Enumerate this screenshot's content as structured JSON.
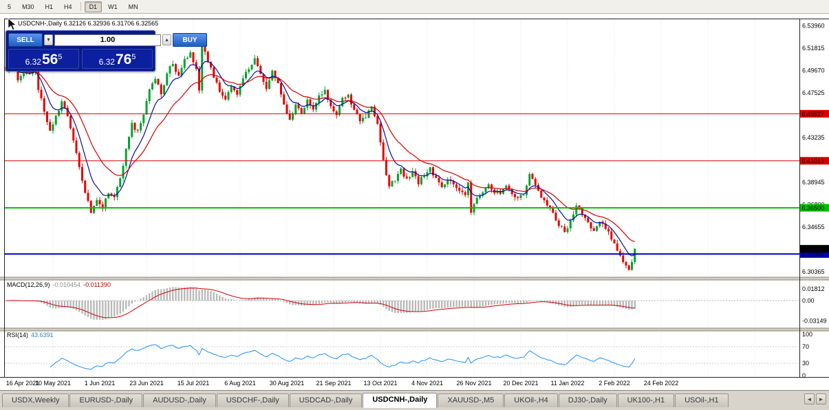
{
  "colors": {
    "up": "#00a32e",
    "down": "#e60000",
    "ma_fast": "#000f9e",
    "ma_slow": "#d40000",
    "macd_hist": "#b9b9b9",
    "macd_signal": "#d40000",
    "rsi_line": "#1e90ff",
    "grid": "#e4e4e4",
    "current_badge": "#000000"
  },
  "icons": {
    "volume_down_icon": "▾",
    "volume_up_icon": "▴",
    "tab_scroll_left_icon": "◄",
    "tab_scroll_right_icon": "►"
  },
  "toolbar": {
    "timeframes": [
      "5",
      "M30",
      "H1",
      "H4",
      "D1",
      "W1",
      "MN"
    ],
    "active": "D1",
    "divider_after_index": 3
  },
  "window": {
    "symbol_line": "USDCNH-,Daily 6.32126 6.32936 6.31706 6.32565"
  },
  "trade_panel": {
    "sell_label": "SELL",
    "buy_label": "BUY",
    "volume": "1.00",
    "sell_big": "6.32",
    "sell_med": "56",
    "sell_sup": "5",
    "buy_big": "6.32",
    "buy_med": "76",
    "buy_sup": "5"
  },
  "price_axis": [
    "6.53960",
    "6.51815",
    "6.49670",
    "6.47525",
    "6.45380",
    "6.43235",
    "6.41090",
    "6.38945",
    "6.36800",
    "6.34655",
    "6.32510",
    "6.30365"
  ],
  "date_axis": [
    "16 Apr 2021",
    "10 May 2021",
    "1 Jun 2021",
    "23 Jun 2021",
    "15 Jul 2021",
    "6 Aug 2021",
    "30 Aug 2021",
    "21 Sep 2021",
    "13 Oct 2021",
    "4 Nov 2021",
    "26 Nov 2021",
    "20 Dec 2021",
    "11 Jan 2022",
    "2 Feb 2022",
    "24 Feb 2022"
  ],
  "levels": [
    {
      "value": 6.45527,
      "label": "6.45527",
      "color": "#dc0000",
      "width": 1
    },
    {
      "value": 6.41013,
      "label": "6.41013",
      "color": "#dc0000",
      "width": 1
    },
    {
      "value": 6.365,
      "label": "6.36500",
      "color": "#00c000",
      "width": 2
    },
    {
      "value": 6.3206,
      "label": "6.32060",
      "color": "#0000c8",
      "width": 2
    }
  ],
  "current_price": {
    "value": 6.32565,
    "label": "6.32565"
  },
  "macd": {
    "name": "MACD(12,26,9)",
    "main": "-0.010454",
    "signal": "-0.011390",
    "axis": [
      {
        "label": "0.01812",
        "value": 0.01812
      },
      {
        "label": "0.00",
        "value": 0
      },
      {
        "label": "-0.03149",
        "value": -0.03149
      }
    ]
  },
  "rsi": {
    "name": "RSI(14)",
    "value": "43.6391",
    "axis": [
      100,
      70,
      30,
      0
    ],
    "levels": [
      70,
      30
    ]
  },
  "tabs": [
    {
      "label": "USDX,Weekly",
      "active": false
    },
    {
      "label": "EURUSD-,Daily",
      "active": false
    },
    {
      "label": "AUDUSD-,Daily",
      "active": false
    },
    {
      "label": "USDCHF-,Daily",
      "active": false
    },
    {
      "label": "USDCAD-,Daily",
      "active": false
    },
    {
      "label": "USDCNH-,Daily",
      "active": true
    },
    {
      "label": "XAUUSD-,M5",
      "active": false
    },
    {
      "label": "UKOil-,H4",
      "active": false
    },
    {
      "label": "DJ30-,Daily",
      "active": false
    },
    {
      "label": "UK100-,H1",
      "active": false
    },
    {
      "label": "USOil-,H1",
      "active": false
    }
  ],
  "chart_data": {
    "type": "candlestick",
    "symbol": "USDCNH-",
    "timeframe": "Daily",
    "last_ohlc": {
      "open": 6.32126,
      "high": 6.32936,
      "low": 6.31706,
      "close": 6.32565
    },
    "y_range": [
      6.299,
      6.546
    ],
    "candle_count": 216,
    "price_anchors": [
      [
        0,
        6.497
      ],
      [
        2,
        6.503
      ],
      [
        4,
        6.489
      ],
      [
        6,
        6.4955
      ],
      [
        8,
        6.4935
      ],
      [
        10,
        6.4985
      ],
      [
        11,
        6.479
      ],
      [
        13,
        6.458
      ],
      [
        15,
        6.44
      ],
      [
        17,
        6.452
      ],
      [
        19,
        6.4665
      ],
      [
        21,
        6.452
      ],
      [
        23,
        6.428
      ],
      [
        25,
        6.404
      ],
      [
        27,
        6.38
      ],
      [
        29,
        6.3595
      ],
      [
        31,
        6.3715
      ],
      [
        33,
        6.3655
      ],
      [
        35,
        6.3805
      ],
      [
        37,
        6.374
      ],
      [
        39,
        6.392
      ],
      [
        41,
        6.422
      ],
      [
        43,
        6.446
      ],
      [
        45,
        6.4375
      ],
      [
        47,
        6.456
      ],
      [
        49,
        6.478
      ],
      [
        51,
        6.49
      ],
      [
        53,
        6.474
      ],
      [
        55,
        6.494
      ],
      [
        57,
        6.504
      ],
      [
        59,
        6.49
      ],
      [
        61,
        6.506
      ],
      [
        63,
        6.5145
      ],
      [
        65,
        6.498
      ],
      [
        66,
        6.476
      ],
      [
        67,
        6.526
      ],
      [
        69,
        6.506
      ],
      [
        71,
        6.49
      ],
      [
        73,
        6.478
      ],
      [
        75,
        6.47
      ],
      [
        77,
        6.483
      ],
      [
        79,
        6.474
      ],
      [
        81,
        6.49
      ],
      [
        83,
        6.5
      ],
      [
        85,
        6.508
      ],
      [
        87,
        6.492
      ],
      [
        89,
        6.48
      ],
      [
        91,
        6.496
      ],
      [
        93,
        6.483
      ],
      [
        95,
        6.463
      ],
      [
        97,
        6.45
      ],
      [
        99,
        6.463
      ],
      [
        101,
        6.456
      ],
      [
        103,
        6.468
      ],
      [
        105,
        6.458
      ],
      [
        107,
        6.473
      ],
      [
        109,
        6.478
      ],
      [
        111,
        6.463
      ],
      [
        113,
        6.456
      ],
      [
        115,
        6.469
      ],
      [
        117,
        6.472
      ],
      [
        119,
        6.459
      ],
      [
        121,
        6.449
      ],
      [
        123,
        6.453
      ],
      [
        125,
        6.463
      ],
      [
        127,
        6.446
      ],
      [
        129,
        6.41
      ],
      [
        131,
        6.386
      ],
      [
        133,
        6.393
      ],
      [
        135,
        6.401
      ],
      [
        137,
        6.392
      ],
      [
        139,
        6.399
      ],
      [
        141,
        6.389
      ],
      [
        143,
        6.396
      ],
      [
        145,
        6.403
      ],
      [
        147,
        6.392
      ],
      [
        149,
        6.386
      ],
      [
        151,
        6.393
      ],
      [
        153,
        6.388
      ],
      [
        155,
        6.381
      ],
      [
        157,
        6.376
      ],
      [
        158,
        6.39
      ],
      [
        159,
        6.361
      ],
      [
        161,
        6.374
      ],
      [
        163,
        6.379
      ],
      [
        165,
        6.386
      ],
      [
        167,
        6.381
      ],
      [
        169,
        6.379
      ],
      [
        171,
        6.386
      ],
      [
        173,
        6.38
      ],
      [
        175,
        6.373
      ],
      [
        177,
        6.379
      ],
      [
        179,
        6.396
      ],
      [
        181,
        6.386
      ],
      [
        183,
        6.376
      ],
      [
        185,
        6.369
      ],
      [
        187,
        6.36
      ],
      [
        189,
        6.349
      ],
      [
        191,
        6.341
      ],
      [
        193,
        6.353
      ],
      [
        195,
        6.366
      ],
      [
        197,
        6.359
      ],
      [
        199,
        6.351
      ],
      [
        201,
        6.343
      ],
      [
        203,
        6.353
      ],
      [
        205,
        6.346
      ],
      [
        207,
        6.336
      ],
      [
        209,
        6.325
      ],
      [
        211,
        6.314
      ],
      [
        213,
        6.307
      ],
      [
        214,
        6.313
      ],
      [
        215,
        6.3257
      ]
    ],
    "indicators": [
      {
        "name": "MACD",
        "params": [
          12,
          26,
          9
        ],
        "last_main": -0.010454,
        "last_signal": -0.01139
      },
      {
        "name": "RSI",
        "params": [
          14
        ],
        "last": 43.6391
      }
    ]
  }
}
